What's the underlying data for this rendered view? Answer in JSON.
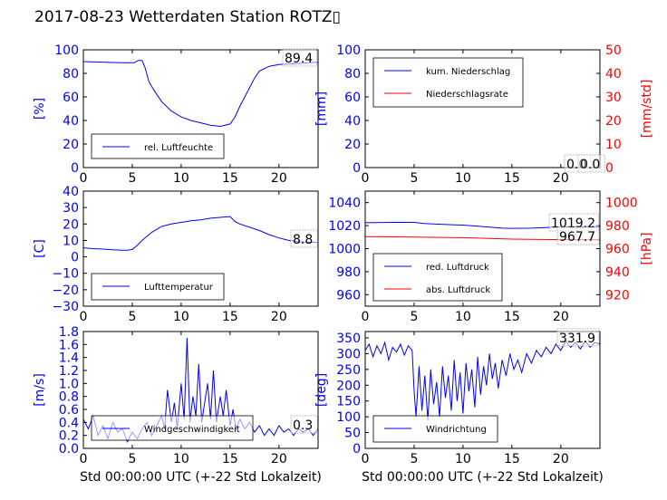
{
  "title": "2017-08-23 Wetterdaten Station ROTZ▯",
  "chart_data": [
    {
      "name": "humidity",
      "type": "line",
      "xlim": [
        0,
        24
      ],
      "xticks": [
        "0",
        "5",
        "10",
        "15",
        "20"
      ],
      "ylim": [
        0,
        100
      ],
      "yticks": [
        "0",
        "20",
        "40",
        "60",
        "80",
        "100"
      ],
      "ylabel": "[%]",
      "series": [
        {
          "name": "rel. Luftfeuchte",
          "color": "#0000ff",
          "x": [
            0,
            2,
            4,
            5.2,
            5.6,
            6,
            6.3,
            6.7,
            7.2,
            8,
            9,
            10,
            11,
            12,
            13,
            14,
            15,
            15.5,
            16,
            16.5,
            17,
            17.5,
            18,
            19,
            20,
            21,
            22,
            23,
            24
          ],
          "y": [
            90,
            89.5,
            89,
            89,
            91,
            91,
            85,
            73,
            66,
            56,
            48,
            43,
            40,
            38,
            36,
            35,
            37,
            43,
            52,
            60,
            68,
            76,
            82,
            86,
            87.5,
            88,
            88.5,
            89,
            89.4
          ]
        }
      ],
      "annotations": [
        "89.4"
      ],
      "legend_loc": "lower-left"
    },
    {
      "name": "precipitation",
      "type": "line",
      "xlim": [
        0,
        24
      ],
      "xticks": [
        "0",
        "5",
        "10",
        "15",
        "20"
      ],
      "ylim": [
        0,
        100
      ],
      "yticks": [
        "0",
        "20",
        "40",
        "60",
        "80",
        "100"
      ],
      "ylabel": "[mm]",
      "ylim_right": [
        0,
        50
      ],
      "yticks_right": [
        "0",
        "10",
        "20",
        "30",
        "40",
        "50"
      ],
      "ylabel_right": "[mm/std]",
      "series": [
        {
          "name": "kum. Niederschlag",
          "color": "#0000ff",
          "x": [
            0,
            24
          ],
          "y": [
            0,
            0
          ]
        },
        {
          "name": "Niederschlagsrate",
          "color": "#ff0000",
          "x": [
            0,
            24
          ],
          "y": [
            0,
            0
          ]
        }
      ],
      "annotations": [
        "0.0",
        "0.0"
      ],
      "legend_loc": "upper-left"
    },
    {
      "name": "temperature",
      "type": "line",
      "xlim": [
        0,
        24
      ],
      "xticks": [
        "0",
        "5",
        "10",
        "15",
        "20"
      ],
      "ylim": [
        -30,
        40
      ],
      "yticks": [
        "−30",
        "−20",
        "−10",
        "0",
        "10",
        "20",
        "30",
        "40"
      ],
      "ylabel": "[C]",
      "series": [
        {
          "name": "Lufttemperatur",
          "color": "#0000ff",
          "x": [
            0,
            1,
            2,
            3,
            4,
            4.5,
            5,
            5.5,
            6,
            7,
            8,
            9,
            10,
            11,
            12,
            13,
            14,
            14.5,
            15,
            15.5,
            16,
            17,
            18,
            19,
            20,
            21,
            22,
            23,
            24
          ],
          "y": [
            5.5,
            5,
            4.7,
            4.3,
            4,
            4,
            4.5,
            7,
            10,
            15,
            18.5,
            20,
            21,
            22,
            22.5,
            23.5,
            24,
            24.3,
            24.5,
            21.5,
            20,
            18,
            16,
            13.5,
            11.5,
            10,
            9.2,
            8.9,
            8.8
          ]
        }
      ],
      "annotations": [
        "8.8"
      ],
      "legend_loc": "lower-left"
    },
    {
      "name": "pressure",
      "type": "line",
      "xlim": [
        0,
        24
      ],
      "xticks": [
        "0",
        "5",
        "10",
        "15",
        "20"
      ],
      "ylim": [
        950,
        1050
      ],
      "yticks": [
        "960",
        "980",
        "1000",
        "1020",
        "1040"
      ],
      "ylim_right": [
        910,
        1010
      ],
      "yticks_right": [
        "920",
        "940",
        "960",
        "980",
        "1000"
      ],
      "ylabel_right": "[hPa]",
      "series": [
        {
          "name": "red. Luftdruck",
          "color": "#0000ff",
          "x": [
            0,
            3,
            5,
            6,
            8,
            10,
            12,
            14,
            15,
            17,
            19,
            21,
            24
          ],
          "y": [
            1022.5,
            1022.8,
            1022.8,
            1021.8,
            1021,
            1020.5,
            1019.2,
            1017.8,
            1017.6,
            1017.8,
            1018.5,
            1019,
            1019.2
          ]
        }
      ],
      "series_right": [
        {
          "name": "abs. Luftdruck",
          "color": "#ff0000",
          "x": [
            0,
            5,
            10,
            15,
            17,
            20,
            24
          ],
          "y": [
            970.5,
            970,
            969.5,
            968.3,
            968,
            967.8,
            967.7
          ]
        }
      ],
      "annotations": [
        "1019.2",
        "967.7"
      ],
      "legend_loc": "lower-left"
    },
    {
      "name": "wind-speed",
      "type": "line",
      "xlim": [
        0,
        24
      ],
      "xticks": [
        "0",
        "5",
        "10",
        "15",
        "20"
      ],
      "xlabel": "Std 00:00:00 UTC (+-22 Std Lokalzeit)",
      "ylim": [
        0,
        1.8
      ],
      "yticks": [
        "0.0",
        "0.2",
        "0.4",
        "0.6",
        "0.8",
        "1.0",
        "1.2",
        "1.4",
        "1.6",
        "1.8"
      ],
      "ylabel": "[m/s]",
      "series": [
        {
          "name": "Windgeschwindigkeit",
          "color": "#0000ff",
          "x": [
            0,
            0.5,
            1,
            1.5,
            2,
            2.5,
            3,
            3.5,
            4,
            4.5,
            5,
            5.5,
            6,
            6.5,
            7,
            7.5,
            8,
            8.3,
            8.6,
            9,
            9.3,
            9.6,
            10,
            10.3,
            10.6,
            10.9,
            11.2,
            11.5,
            11.8,
            12.1,
            12.4,
            12.7,
            13,
            13.3,
            13.6,
            14,
            14.3,
            14.6,
            15,
            15.3,
            15.6,
            16,
            16.5,
            17,
            17.5,
            18,
            18.5,
            19,
            19.5,
            20,
            20.5,
            21,
            21.5,
            22,
            22.5,
            23,
            23.5,
            24
          ],
          "y": [
            0.45,
            0.3,
            0.5,
            0.2,
            0.35,
            0.15,
            0.4,
            0.25,
            0.3,
            0.1,
            0.25,
            0.15,
            0.3,
            0.4,
            0.2,
            0.35,
            0.5,
            0.3,
            0.9,
            0.4,
            0.7,
            0.3,
            1.0,
            0.45,
            1.7,
            0.4,
            0.8,
            0.5,
            1.3,
            0.4,
            0.7,
            1.0,
            0.45,
            1.2,
            0.4,
            0.8,
            0.5,
            0.9,
            0.35,
            0.6,
            0.3,
            0.45,
            0.3,
            0.4,
            0.25,
            0.35,
            0.2,
            0.3,
            0.2,
            0.35,
            0.25,
            0.3,
            0.2,
            0.3,
            0.25,
            0.3,
            0.2,
            0.3
          ]
        }
      ],
      "annotations": [
        "0.3"
      ],
      "legend_loc": "lower-center"
    },
    {
      "name": "wind-direction",
      "type": "line",
      "xlim": [
        0,
        24
      ],
      "xticks": [
        "0",
        "5",
        "10",
        "15",
        "20"
      ],
      "xlabel": "Std 00:00:00 UTC (+-22 Std Lokalzeit)",
      "ylim": [
        0,
        370
      ],
      "yticks": [
        "0",
        "50",
        "100",
        "150",
        "200",
        "250",
        "300",
        "350"
      ],
      "ylabel": "[deg]",
      "series": [
        {
          "name": "Windrichtung",
          "color": "#0000ff",
          "x": [
            0,
            0.4,
            0.8,
            1.2,
            1.6,
            2,
            2.4,
            2.8,
            3.2,
            3.6,
            4,
            4.4,
            4.8,
            5,
            5.2,
            5.5,
            5.8,
            6.1,
            6.4,
            6.7,
            7,
            7.3,
            7.6,
            7.9,
            8.2,
            8.5,
            8.8,
            9.1,
            9.4,
            9.7,
            10,
            10.3,
            10.6,
            10.9,
            11.2,
            11.5,
            11.8,
            12.1,
            12.4,
            12.7,
            13,
            13.3,
            13.6,
            14,
            14.4,
            14.8,
            15.2,
            15.6,
            16,
            16.5,
            17,
            17.5,
            18,
            18.5,
            19,
            19.5,
            20,
            20.5,
            21,
            21.5,
            22,
            22.5,
            23,
            23.5,
            24
          ],
          "y": [
            310,
            330,
            290,
            325,
            300,
            335,
            280,
            320,
            305,
            330,
            295,
            325,
            310,
            180,
            100,
            260,
            120,
            230,
            90,
            250,
            140,
            210,
            100,
            260,
            160,
            230,
            120,
            280,
            150,
            240,
            110,
            270,
            180,
            250,
            130,
            290,
            170,
            260,
            200,
            300,
            220,
            270,
            190,
            280,
            230,
            300,
            250,
            280,
            240,
            300,
            270,
            310,
            290,
            320,
            300,
            330,
            310,
            340,
            320,
            335,
            315,
            340,
            320,
            335,
            330
          ]
        }
      ],
      "annotations": [
        "331.9"
      ],
      "legend_loc": "lower-left"
    }
  ]
}
